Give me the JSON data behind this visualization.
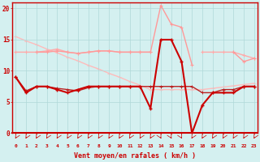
{
  "x": [
    0,
    1,
    2,
    3,
    4,
    5,
    6,
    7,
    8,
    9,
    10,
    11,
    12,
    13,
    14,
    15,
    16,
    17,
    18,
    19,
    20,
    21,
    22,
    23
  ],
  "diag_line": {
    "color": "#ffbbbb",
    "y": [
      15.5,
      14.8,
      14.2,
      13.5,
      12.9,
      12.2,
      11.6,
      10.9,
      10.3,
      9.6,
      9.0,
      8.3,
      7.7,
      7.0,
      7.0,
      7.0,
      7.0,
      7.0,
      7.0,
      7.2,
      7.4,
      7.6,
      7.8,
      8.0
    ]
  },
  "rafales_line": {
    "color": "#ff9999",
    "y": [
      null,
      null,
      13.0,
      13.0,
      13.2,
      13.0,
      12.8,
      13.0,
      13.2,
      13.2,
      13.0,
      13.0,
      13.0,
      13.0,
      20.5,
      17.5,
      17.0,
      11.0,
      null,
      null,
      null,
      13.0,
      11.5,
      12.0
    ]
  },
  "pink_flat_line": {
    "color": "#ffaaaa",
    "y": [
      13.0,
      13.0,
      13.0,
      13.2,
      13.5,
      13.0,
      12.8,
      13.0,
      13.2,
      13.2,
      13.0,
      13.0,
      13.0,
      13.0,
      null,
      13.0,
      null,
      null,
      13.0,
      13.0,
      13.0,
      13.0,
      12.5,
      12.0
    ]
  },
  "moyen_line": {
    "color": "#cc0000",
    "y": [
      9.0,
      6.5,
      7.5,
      7.5,
      7.0,
      6.5,
      7.0,
      7.5,
      7.5,
      7.5,
      7.5,
      7.5,
      7.5,
      4.0,
      15.0,
      15.0,
      11.5,
      0.0,
      4.5,
      6.5,
      6.5,
      6.5,
      7.5,
      7.5
    ]
  },
  "flat_red_line": {
    "color": "#bb2222",
    "y": [
      9.0,
      6.8,
      7.5,
      7.5,
      7.2,
      7.0,
      6.8,
      7.3,
      7.5,
      7.5,
      7.5,
      7.5,
      7.5,
      7.5,
      7.5,
      7.5,
      7.5,
      7.5,
      6.5,
      6.5,
      7.0,
      7.0,
      7.5,
      7.5
    ]
  },
  "xlim": [
    -0.3,
    23.3
  ],
  "ylim": [
    0,
    21
  ],
  "yticks": [
    0,
    5,
    10,
    15,
    20
  ],
  "xticks": [
    0,
    1,
    2,
    3,
    4,
    5,
    6,
    7,
    8,
    9,
    10,
    11,
    12,
    13,
    14,
    15,
    16,
    17,
    18,
    19,
    20,
    21,
    22,
    23
  ],
  "xlabel": "Vent moyen/en rafales ( km/h )",
  "background_color": "#d4f0f0",
  "grid_color": "#b0d8d8",
  "tick_color": "#cc0000",
  "label_color": "#cc0000",
  "spine_color": "#cc0000"
}
